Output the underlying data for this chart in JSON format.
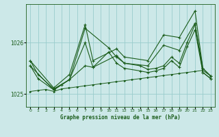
{
  "title": "Graphe pression niveau de la mer (hPa)",
  "bg_color": "#cce8e8",
  "grid_color": "#99cccc",
  "line_color": "#1a5c1a",
  "ylim": [
    1024.75,
    1026.75
  ],
  "yticks": [
    1025,
    1026
  ],
  "xlim": [
    -0.5,
    23.5
  ],
  "xticks": [
    0,
    1,
    2,
    3,
    4,
    5,
    6,
    7,
    8,
    9,
    10,
    11,
    12,
    13,
    14,
    15,
    16,
    17,
    18,
    19,
    20,
    21,
    22,
    23
  ],
  "baseline": [
    1025.05,
    1025.07,
    1025.09,
    1025.05,
    1025.1,
    1025.12,
    1025.14,
    1025.16,
    1025.18,
    1025.2,
    1025.22,
    1025.24,
    1025.26,
    1025.28,
    1025.3,
    1025.32,
    1025.34,
    1025.36,
    1025.38,
    1025.4,
    1025.42,
    1025.44,
    1025.46,
    1025.35
  ],
  "series_jagged1": [
    1025.65,
    1025.38,
    null,
    1025.1,
    null,
    1025.28,
    null,
    1026.28,
    null,
    null,
    1025.9,
    1025.72,
    1025.6,
    null,
    1025.55,
    1025.48,
    1025.5,
    1025.55,
    1025.72,
    1025.6,
    1026.0,
    1026.35,
    1025.5,
    1025.35
  ],
  "series_jagged2_x": [
    0,
    1,
    3,
    4,
    5,
    7,
    8,
    10,
    11,
    12,
    14,
    15,
    16,
    17,
    18,
    19,
    20,
    21,
    22,
    23
  ],
  "series_jagged2_y": [
    1025.55,
    1025.3,
    1025.08,
    1025.18,
    1025.28,
    1025.55,
    1025.52,
    1025.82,
    1025.6,
    1025.5,
    1025.45,
    1025.42,
    1025.45,
    1025.5,
    1025.65,
    1025.52,
    1025.92,
    1026.25,
    1025.42,
    1025.3
  ],
  "series_upper_x": [
    0,
    3,
    5,
    7,
    8,
    11,
    12,
    15,
    17,
    19,
    21,
    22,
    23
  ],
  "series_upper_y": [
    1025.65,
    1025.12,
    1025.38,
    1026.35,
    1025.65,
    1025.88,
    1025.72,
    1025.65,
    1026.15,
    1026.1,
    1026.62,
    1025.5,
    1025.35
  ],
  "series_upper2_x": [
    0,
    3,
    5,
    7,
    8,
    11,
    12,
    15,
    17,
    19,
    21,
    22,
    23
  ],
  "series_upper2_y": [
    1025.55,
    1025.08,
    1025.28,
    1026.0,
    1025.52,
    1025.75,
    1025.6,
    1025.55,
    1025.95,
    1025.85,
    1026.38,
    1025.42,
    1025.3
  ]
}
